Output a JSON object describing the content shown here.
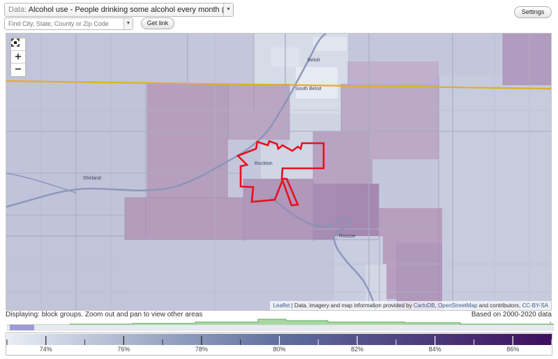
{
  "toolbar": {
    "data_prefix": "Data:",
    "data_value": "Alcohol use - People drinking some alcohol every month (%)",
    "search_placeholder": "Find City, State, County or Zip Code",
    "get_link_label": "Get link",
    "settings_label": "Settings"
  },
  "map": {
    "zoom_in": "+",
    "zoom_out": "−",
    "attribution_leaflet": "Leaflet",
    "attribution_data": "| Data, imagery and map information provided by",
    "attribution_carto": "CartoDB",
    "attribution_osm": "OpenStreetMap",
    "attribution_rest": "and contributors,",
    "attribution_license": "CC-BY-SA",
    "places": {
      "beloit": "Beloit",
      "south_beloit": "South Beloit",
      "rockton": "Rockton",
      "shirland": "Shirland",
      "roscoe": "Roscoe"
    }
  },
  "status": {
    "displaying": "Displaying: block groups. Zoom out and pan to view other areas",
    "based_on": "Based on 2000-2020 data"
  },
  "legend": {
    "labels": [
      "74%",
      "76%",
      "78%",
      "80%",
      "82%",
      "84%",
      "86%"
    ],
    "label_values": [
      74,
      76,
      78,
      80,
      82,
      84,
      86
    ],
    "min": 73,
    "max": 87,
    "color_low": "#e8eef4",
    "color_mid": "#5f6f9e",
    "color_high": "#3d0e5e",
    "selected_value": 73.4
  },
  "colors": {
    "outline": "#e8101e",
    "state_line": "#e0b020",
    "histogram_fill": "#a8d8a0",
    "histogram_stroke": "#3c9a3c",
    "selection_bar": "#9d9ad6"
  }
}
